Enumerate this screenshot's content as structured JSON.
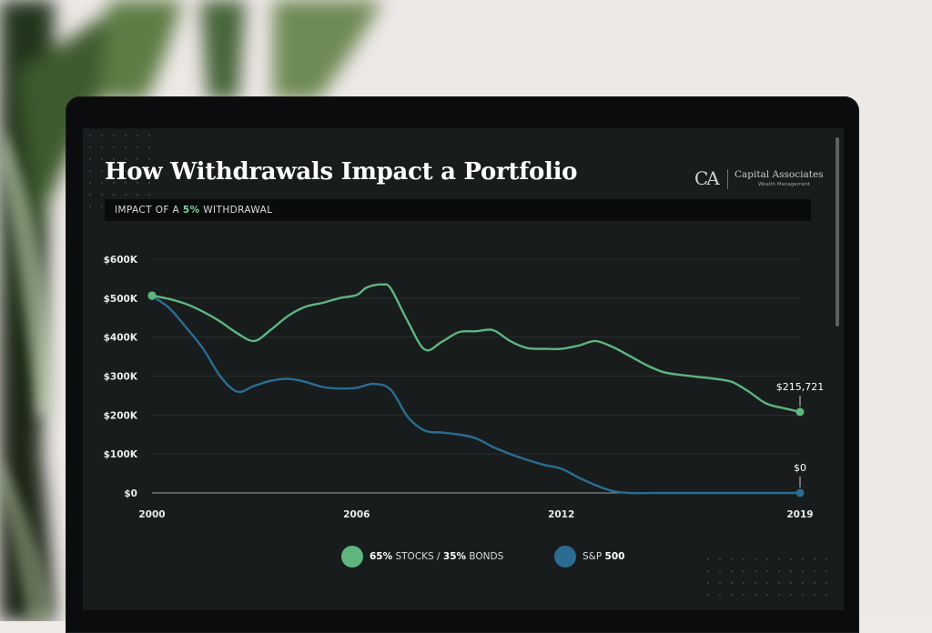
{
  "header": {
    "title": "How Withdrawals Impact a Portfolio",
    "subtitle_prefix": "IMPACT OF A ",
    "subtitle_highlight": "5%",
    "subtitle_suffix": " WITHDRAWAL"
  },
  "brand": {
    "monogram": "CA",
    "name": "Capital Associates",
    "tagline": "Wealth Management"
  },
  "legend": {
    "series1_a": "65%",
    "series1_b": " STOCKS / ",
    "series1_c": "35%",
    "series1_d": " BONDS",
    "series2_a": "S&P ",
    "series2_b": "500"
  },
  "colors": {
    "background": "#181c1c",
    "balanced": "#5fb57e",
    "sp500": "#2b6d92",
    "grid": "#2c3231",
    "axis_text": "#e9ecea"
  },
  "chart_data": {
    "type": "line",
    "title": "How Withdrawals Impact a Portfolio",
    "subtitle": "IMPACT OF A 5% WITHDRAWAL",
    "xlabel": "",
    "ylabel": "",
    "x_ticks": [
      "2000",
      "2006",
      "2012",
      "2019"
    ],
    "y_ticks": [
      "$0",
      "$100K",
      "$200K",
      "$300K",
      "$400K",
      "$500K",
      "$600K"
    ],
    "xlim": [
      2000,
      2019
    ],
    "ylim": [
      0,
      600000
    ],
    "grid": true,
    "legend_position": "bottom-center",
    "series": [
      {
        "name": "65% STOCKS / 35% BONDS",
        "color": "#5fb57e",
        "x": [
          2000,
          2000.5,
          2001,
          2001.5,
          2002,
          2002.5,
          2003,
          2003.5,
          2004,
          2004.5,
          2005,
          2005.5,
          2006,
          2006.25,
          2006.5,
          2006.75,
          2007,
          2007.5,
          2008,
          2008.5,
          2009,
          2009.5,
          2010,
          2010.5,
          2011,
          2011.5,
          2012,
          2012.5,
          2013,
          2013.5,
          2014,
          2014.5,
          2015,
          2015.5,
          2016,
          2016.5,
          2017,
          2017.5,
          2018,
          2018.5,
          2019
        ],
        "y": [
          507000,
          498000,
          485000,
          465000,
          440000,
          410000,
          390000,
          420000,
          455000,
          478000,
          488000,
          500000,
          508000,
          525000,
          533000,
          535000,
          525000,
          440000,
          368000,
          388000,
          413000,
          415000,
          418000,
          390000,
          372000,
          370000,
          370000,
          378000,
          390000,
          375000,
          352000,
          328000,
          310000,
          303000,
          298000,
          293000,
          285000,
          260000,
          230000,
          218000,
          208000
        ],
        "end_label": "$215,721"
      },
      {
        "name": "S&P 500",
        "color": "#2b6d92",
        "x": [
          2000,
          2000.5,
          2001,
          2001.5,
          2002,
          2002.5,
          2003,
          2003.5,
          2004,
          2004.5,
          2005,
          2005.5,
          2006,
          2006.5,
          2007,
          2007.5,
          2008,
          2008.5,
          2009,
          2009.5,
          2010,
          2010.5,
          2011,
          2011.5,
          2012,
          2012.5,
          2013,
          2013.5,
          2014,
          2015,
          2016,
          2017,
          2018,
          2019
        ],
        "y": [
          505000,
          475000,
          425000,
          370000,
          300000,
          260000,
          275000,
          288000,
          293000,
          285000,
          272000,
          268000,
          270000,
          280000,
          265000,
          195000,
          160000,
          155000,
          150000,
          140000,
          118000,
          100000,
          85000,
          72000,
          62000,
          40000,
          20000,
          5000,
          0,
          0,
          0,
          0,
          0,
          0
        ],
        "end_label": "$0"
      }
    ]
  }
}
